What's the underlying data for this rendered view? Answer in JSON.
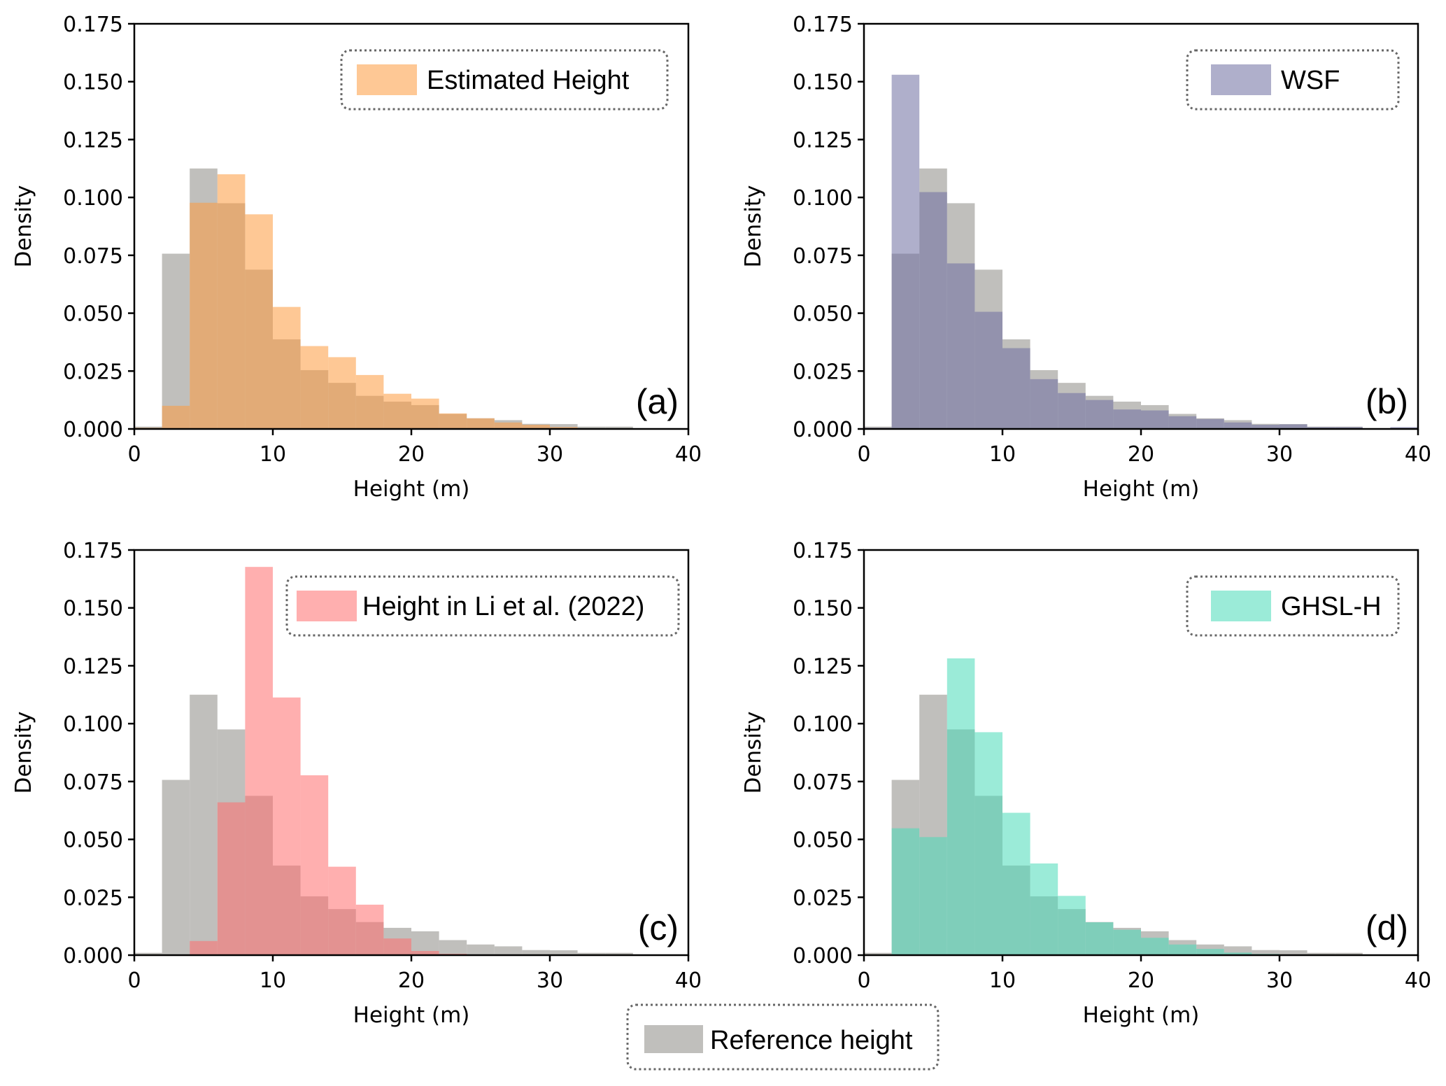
{
  "chart_data": {
    "type": "histogram",
    "layout": "2x2 grid with shared bottom legend",
    "bin_edges": [
      0,
      2,
      4,
      6,
      8,
      10,
      12,
      14,
      16,
      18,
      20,
      22,
      24,
      26,
      28,
      30,
      32,
      34,
      36,
      38,
      40
    ],
    "xlim": [
      0,
      40
    ],
    "ylim": [
      0,
      0.175
    ],
    "xticks": [
      0,
      10,
      20,
      30,
      40
    ],
    "yticks": [
      "0.000",
      "0.025",
      "0.050",
      "0.075",
      "0.100",
      "0.125",
      "0.150",
      "0.175"
    ],
    "xlabel": "Height (m)",
    "ylabel": "Density",
    "grid": false,
    "reference": {
      "name": "Reference height",
      "color": "#b0afab",
      "legend_placement": "bottom-center",
      "values": [
        0.001,
        0.0757,
        0.1125,
        0.0975,
        0.0688,
        0.0387,
        0.0254,
        0.0199,
        0.0143,
        0.0118,
        0.0103,
        0.0065,
        0.0046,
        0.0038,
        0.0022,
        0.0021,
        0.001,
        0.001,
        0,
        0
      ]
    },
    "panels": [
      {
        "label": "(a)",
        "series_name": "Estimated Height",
        "color": "#fd9a3e",
        "legend_placement": "top-right",
        "values": [
          0.0005,
          0.01,
          0.0977,
          0.11,
          0.0927,
          0.0527,
          0.0358,
          0.031,
          0.0233,
          0.0152,
          0.0131,
          0.0067,
          0.0046,
          0.0028,
          0.0018,
          0.0008,
          0.0003,
          0,
          0,
          0
        ]
      },
      {
        "label": "(b)",
        "series_name": "WSF",
        "color": "#6e6ea1",
        "legend_placement": "top-right",
        "values": [
          0.0005,
          0.153,
          0.1023,
          0.0715,
          0.0506,
          0.0349,
          0.0215,
          0.0155,
          0.0125,
          0.0084,
          0.008,
          0.0055,
          0.0043,
          0.0028,
          0.0018,
          0.002,
          0.0008,
          0.0008,
          0.0003,
          0.0008
        ]
      },
      {
        "label": "(c)",
        "series_name": "Height in Li et al. (2022)",
        "color": "#ff6e6e",
        "legend_placement": "top-right",
        "values": [
          0,
          0,
          0.0061,
          0.066,
          0.1677,
          0.1113,
          0.0777,
          0.0382,
          0.0218,
          0.0072,
          0.0018,
          0.0006,
          0,
          0,
          0,
          0,
          0,
          0,
          0,
          0
        ]
      },
      {
        "label": "(d)",
        "series_name": "GHSL-H",
        "color": "#49dbb8",
        "legend_placement": "top-right",
        "values": [
          0,
          0.0548,
          0.051,
          0.1282,
          0.0963,
          0.0615,
          0.0396,
          0.0256,
          0.0142,
          0.011,
          0.0075,
          0.0046,
          0.0027,
          0.0011,
          0.0005,
          0,
          0,
          0,
          0,
          0
        ]
      }
    ]
  }
}
